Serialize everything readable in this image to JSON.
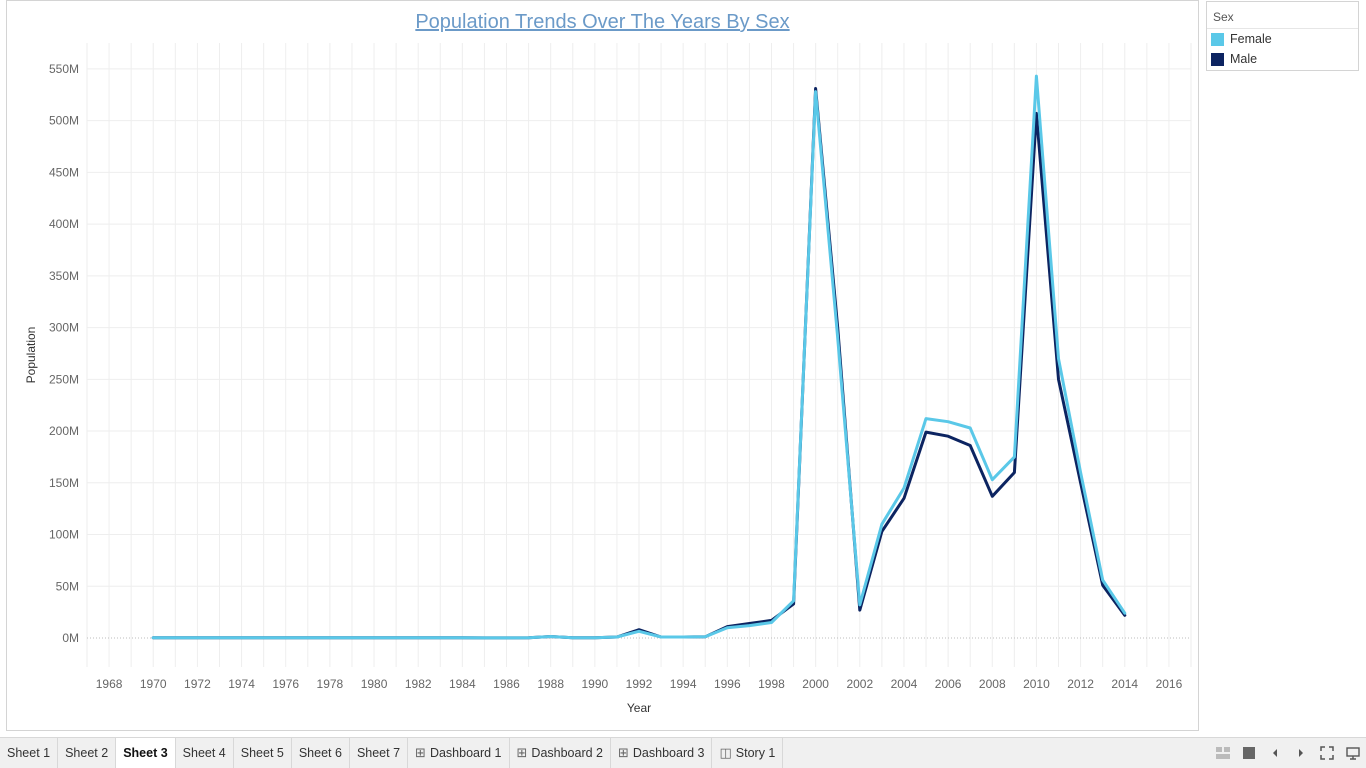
{
  "chart_data": {
    "type": "line",
    "title": "Population Trends Over The Years By Sex",
    "xlabel": "Year",
    "ylabel": "Population",
    "x_ticks": [
      "1968",
      "1970",
      "1972",
      "1974",
      "1976",
      "1978",
      "1980",
      "1982",
      "1984",
      "1986",
      "1988",
      "1990",
      "1992",
      "1994",
      "1996",
      "1998",
      "2000",
      "2002",
      "2004",
      "2006",
      "2008",
      "2010",
      "2012",
      "2014",
      "2016"
    ],
    "y_ticks": [
      "0M",
      "50M",
      "100M",
      "150M",
      "200M",
      "250M",
      "300M",
      "350M",
      "400M",
      "450M",
      "500M",
      "550M"
    ],
    "xlim": [
      1967,
      2017
    ],
    "ylim": [
      -28,
      575
    ],
    "y_unit": "M",
    "grid": true,
    "legend_title": "Sex",
    "legend_position": "right",
    "x": [
      1970,
      1971,
      1972,
      1973,
      1974,
      1975,
      1976,
      1977,
      1978,
      1979,
      1980,
      1981,
      1982,
      1983,
      1984,
      1985,
      1986,
      1987,
      1988,
      1989,
      1990,
      1991,
      1992,
      1993,
      1994,
      1995,
      1996,
      1997,
      1998,
      1999,
      2000,
      2001,
      2002,
      2003,
      2004,
      2005,
      2006,
      2007,
      2008,
      2009,
      2010,
      2011,
      2012,
      2013,
      2014
    ],
    "series": [
      {
        "name": "Female",
        "color": "#5ac8e8",
        "values": [
          0.3,
          0.3,
          0.3,
          0.3,
          0.3,
          0.2,
          0.2,
          0.2,
          0.2,
          0.2,
          0.2,
          0.2,
          0.2,
          0.2,
          0.2,
          0.1,
          0.1,
          0.2,
          1.5,
          0.2,
          0.3,
          1,
          6.5,
          1,
          1,
          1.2,
          10,
          12,
          15,
          36,
          528,
          290,
          32,
          110,
          145,
          212,
          209,
          203,
          153,
          175,
          543,
          270,
          160,
          56,
          24
        ]
      },
      {
        "name": "Male",
        "color": "#0c2461",
        "values": [
          0.3,
          0.3,
          0.3,
          0.3,
          0.3,
          0.2,
          0.2,
          0.2,
          0.2,
          0.2,
          0.2,
          0.2,
          0.2,
          0.2,
          0.2,
          0.1,
          0.1,
          0.2,
          1.5,
          0.2,
          0.3,
          1,
          8,
          1,
          1,
          1.2,
          11,
          14,
          17,
          33,
          531,
          300,
          27,
          103,
          135,
          199,
          195,
          186,
          137,
          160,
          507,
          250,
          150,
          51,
          22
        ]
      }
    ]
  },
  "tabs": [
    {
      "label": "Sheet 1",
      "icon": ""
    },
    {
      "label": "Sheet 2",
      "icon": ""
    },
    {
      "label": "Sheet 3",
      "icon": "",
      "active": true
    },
    {
      "label": "Sheet 4",
      "icon": ""
    },
    {
      "label": "Sheet 5",
      "icon": ""
    },
    {
      "label": "Sheet 6",
      "icon": ""
    },
    {
      "label": "Sheet 7",
      "icon": ""
    },
    {
      "label": "Dashboard 1",
      "icon": "dashboard-icon"
    },
    {
      "label": "Dashboard 2",
      "icon": "dashboard-icon"
    },
    {
      "label": "Dashboard 3",
      "icon": "dashboard-icon"
    },
    {
      "label": "Story 1",
      "icon": "story-icon"
    }
  ],
  "controls": [
    "sheet-sorter-icon",
    "filmstrip-icon",
    "previous-icon",
    "next-icon",
    "fullscreen-icon",
    "presentation-icon"
  ]
}
